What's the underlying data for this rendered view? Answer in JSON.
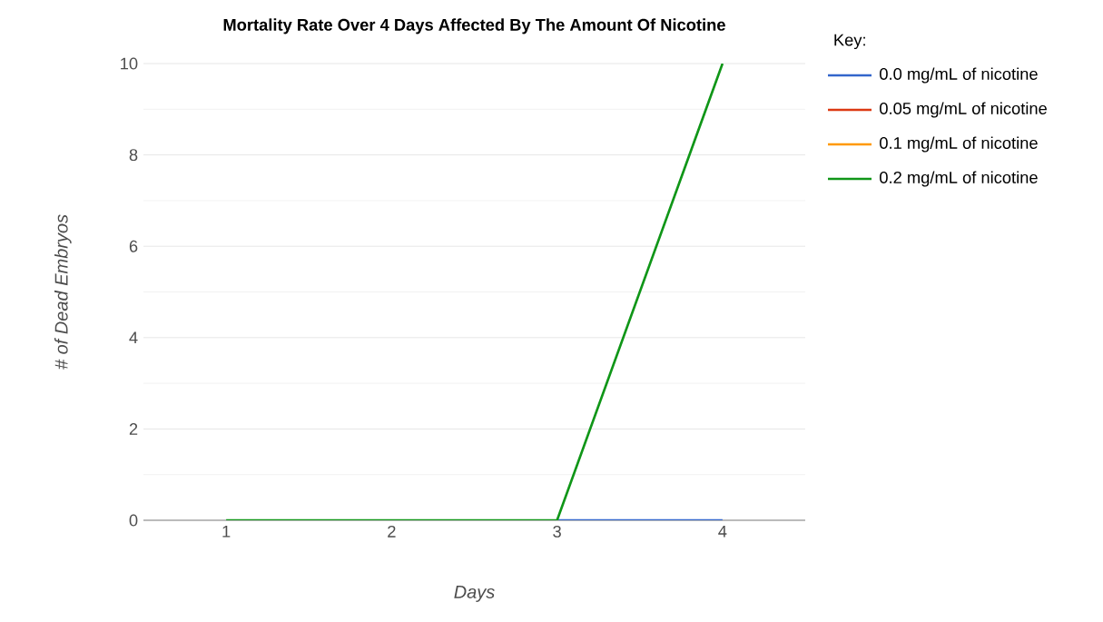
{
  "chart_data": {
    "type": "line",
    "title": "Mortality Rate Over 4 Days Affected By The Amount Of Nicotine",
    "xlabel": "Days",
    "ylabel": "# of Dead Embryos",
    "legend_title": "Key:",
    "categories": [
      "1",
      "2",
      "3",
      "4"
    ],
    "series": [
      {
        "name": "0.0 mg/mL of nicotine",
        "color": "#3366cc",
        "values": [
          null,
          null,
          0,
          0
        ]
      },
      {
        "name": "0.05 mg/mL of nicotine",
        "color": "#dc3912",
        "values": [
          null,
          null,
          null,
          null
        ]
      },
      {
        "name": "0.1 mg/mL of nicotine",
        "color": "#ff9900",
        "values": [
          null,
          null,
          null,
          null
        ]
      },
      {
        "name": "0.2 mg/mL of nicotine",
        "color": "#109618",
        "values": [
          0,
          0,
          0,
          10
        ]
      }
    ],
    "ylim": [
      0,
      10
    ],
    "yticks": [
      0,
      2,
      4,
      6,
      8,
      10
    ],
    "grid": "y",
    "legend": "top right",
    "marker": "none",
    "line_style": "solid"
  }
}
